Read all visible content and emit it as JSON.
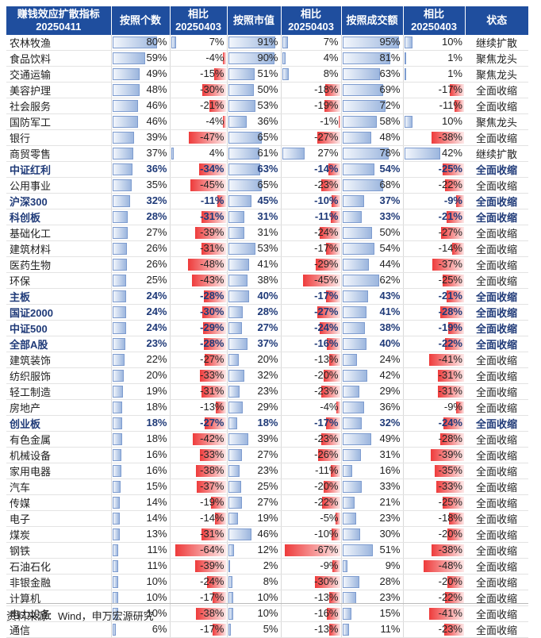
{
  "headers": [
    "赚钱效应扩散指标\n20250411",
    "按照个数",
    "相比\n20250403",
    "按照市值",
    "相比\n20250403",
    "按照成交额",
    "相比\n20250403",
    "状态"
  ],
  "source": "资料来源：Wind，申万宏源研究",
  "colors": {
    "header_bg": "#1f4e9e",
    "positive_bar": "#9cb6de",
    "negative_bar": "#ee3b3b",
    "bold_text": "#1f3a78"
  },
  "chart_data": {
    "type": "table",
    "columns": [
      "按照个数",
      "相比20250403",
      "按照市值",
      "相比20250403",
      "按照成交额",
      "相比20250403",
      "状态"
    ],
    "rows": [
      {
        "name": "农林牧渔",
        "bold": false,
        "count": 80,
        "count_chg": 7,
        "mcap": 91,
        "mcap_chg": 7,
        "amt": 95,
        "amt_chg": 10,
        "status": "继续扩散"
      },
      {
        "name": "食品饮料",
        "bold": false,
        "count": 59,
        "count_chg": -4,
        "mcap": 90,
        "mcap_chg": 4,
        "amt": 81,
        "amt_chg": 1,
        "status": "聚焦龙头"
      },
      {
        "name": "交通运输",
        "bold": false,
        "count": 49,
        "count_chg": -15,
        "mcap": 51,
        "mcap_chg": 8,
        "amt": 63,
        "amt_chg": 1,
        "status": "聚焦龙头"
      },
      {
        "name": "美容护理",
        "bold": false,
        "count": 48,
        "count_chg": -30,
        "mcap": 50,
        "mcap_chg": -18,
        "amt": 69,
        "amt_chg": -17,
        "status": "全面收缩"
      },
      {
        "name": "社会服务",
        "bold": false,
        "count": 46,
        "count_chg": -21,
        "mcap": 53,
        "mcap_chg": -19,
        "amt": 72,
        "amt_chg": -11,
        "status": "全面收缩"
      },
      {
        "name": "国防军工",
        "bold": false,
        "count": 46,
        "count_chg": -4,
        "mcap": 36,
        "mcap_chg": -1,
        "amt": 58,
        "amt_chg": 10,
        "status": "聚焦龙头"
      },
      {
        "name": "银行",
        "bold": false,
        "count": 39,
        "count_chg": -47,
        "mcap": 65,
        "mcap_chg": -27,
        "amt": 48,
        "amt_chg": -38,
        "status": "全面收缩"
      },
      {
        "name": "商贸零售",
        "bold": false,
        "count": 37,
        "count_chg": 4,
        "mcap": 61,
        "mcap_chg": 27,
        "amt": 78,
        "amt_chg": 42,
        "status": "继续扩散"
      },
      {
        "name": "中证红利",
        "bold": true,
        "count": 36,
        "count_chg": -34,
        "mcap": 63,
        "mcap_chg": -14,
        "amt": 54,
        "amt_chg": -25,
        "status": "全面收缩"
      },
      {
        "name": "公用事业",
        "bold": false,
        "count": 35,
        "count_chg": -45,
        "mcap": 65,
        "mcap_chg": -23,
        "amt": 68,
        "amt_chg": -22,
        "status": "全面收缩"
      },
      {
        "name": "沪深300",
        "bold": true,
        "count": 32,
        "count_chg": -11,
        "mcap": 45,
        "mcap_chg": -10,
        "amt": 37,
        "amt_chg": -9,
        "status": "全面收缩"
      },
      {
        "name": "科创板",
        "bold": true,
        "count": 28,
        "count_chg": -31,
        "mcap": 31,
        "mcap_chg": -11,
        "amt": 33,
        "amt_chg": -21,
        "status": "全面收缩"
      },
      {
        "name": "基础化工",
        "bold": false,
        "count": 27,
        "count_chg": -39,
        "mcap": 31,
        "mcap_chg": -24,
        "amt": 50,
        "amt_chg": -27,
        "status": "全面收缩"
      },
      {
        "name": "建筑材料",
        "bold": false,
        "count": 26,
        "count_chg": -31,
        "mcap": 53,
        "mcap_chg": -17,
        "amt": 54,
        "amt_chg": -14,
        "status": "全面收缩"
      },
      {
        "name": "医药生物",
        "bold": false,
        "count": 26,
        "count_chg": -48,
        "mcap": 41,
        "mcap_chg": -29,
        "amt": 44,
        "amt_chg": -37,
        "status": "全面收缩"
      },
      {
        "name": "环保",
        "bold": false,
        "count": 25,
        "count_chg": -43,
        "mcap": 38,
        "mcap_chg": -45,
        "amt": 62,
        "amt_chg": -25,
        "status": "全面收缩"
      },
      {
        "name": "主板",
        "bold": true,
        "count": 24,
        "count_chg": -28,
        "mcap": 40,
        "mcap_chg": -17,
        "amt": 43,
        "amt_chg": -21,
        "status": "全面收缩"
      },
      {
        "name": "国证2000",
        "bold": true,
        "count": 24,
        "count_chg": -30,
        "mcap": 28,
        "mcap_chg": -27,
        "amt": 41,
        "amt_chg": -28,
        "status": "全面收缩"
      },
      {
        "name": "中证500",
        "bold": true,
        "count": 24,
        "count_chg": -29,
        "mcap": 27,
        "mcap_chg": -24,
        "amt": 38,
        "amt_chg": -19,
        "status": "全面收缩"
      },
      {
        "name": "全部A股",
        "bold": true,
        "count": 23,
        "count_chg": -28,
        "mcap": 37,
        "mcap_chg": -16,
        "amt": 40,
        "amt_chg": -22,
        "status": "全面收缩"
      },
      {
        "name": "建筑装饰",
        "bold": false,
        "count": 22,
        "count_chg": -27,
        "mcap": 20,
        "mcap_chg": -13,
        "amt": 24,
        "amt_chg": -41,
        "status": "全面收缩"
      },
      {
        "name": "纺织服饰",
        "bold": false,
        "count": 20,
        "count_chg": -33,
        "mcap": 32,
        "mcap_chg": -20,
        "amt": 42,
        "amt_chg": -31,
        "status": "全面收缩"
      },
      {
        "name": "轻工制造",
        "bold": false,
        "count": 19,
        "count_chg": -31,
        "mcap": 23,
        "mcap_chg": -23,
        "amt": 29,
        "amt_chg": -31,
        "status": "全面收缩"
      },
      {
        "name": "房地产",
        "bold": false,
        "count": 18,
        "count_chg": -13,
        "mcap": 29,
        "mcap_chg": -4,
        "amt": 36,
        "amt_chg": -9,
        "status": "全面收缩"
      },
      {
        "name": "创业板",
        "bold": true,
        "count": 18,
        "count_chg": -27,
        "mcap": 18,
        "mcap_chg": -17,
        "amt": 32,
        "amt_chg": -24,
        "status": "全面收缩"
      },
      {
        "name": "有色金属",
        "bold": false,
        "count": 18,
        "count_chg": -42,
        "mcap": 39,
        "mcap_chg": -23,
        "amt": 49,
        "amt_chg": -28,
        "status": "全面收缩"
      },
      {
        "name": "机械设备",
        "bold": false,
        "count": 16,
        "count_chg": -33,
        "mcap": 27,
        "mcap_chg": -26,
        "amt": 31,
        "amt_chg": -39,
        "status": "全面收缩"
      },
      {
        "name": "家用电器",
        "bold": false,
        "count": 16,
        "count_chg": -38,
        "mcap": 23,
        "mcap_chg": -11,
        "amt": 16,
        "amt_chg": -35,
        "status": "全面收缩"
      },
      {
        "name": "汽车",
        "bold": false,
        "count": 15,
        "count_chg": -37,
        "mcap": 25,
        "mcap_chg": -20,
        "amt": 33,
        "amt_chg": -33,
        "status": "全面收缩"
      },
      {
        "name": "传媒",
        "bold": false,
        "count": 14,
        "count_chg": -19,
        "mcap": 27,
        "mcap_chg": -22,
        "amt": 21,
        "amt_chg": -25,
        "status": "全面收缩"
      },
      {
        "name": "电子",
        "bold": false,
        "count": 14,
        "count_chg": -14,
        "mcap": 19,
        "mcap_chg": -5,
        "amt": 23,
        "amt_chg": -18,
        "status": "全面收缩"
      },
      {
        "name": "煤炭",
        "bold": false,
        "count": 13,
        "count_chg": -31,
        "mcap": 46,
        "mcap_chg": -10,
        "amt": 30,
        "amt_chg": -20,
        "status": "全面收缩"
      },
      {
        "name": "钢铁",
        "bold": false,
        "count": 11,
        "count_chg": -64,
        "mcap": 12,
        "mcap_chg": -67,
        "amt": 51,
        "amt_chg": -38,
        "status": "全面收缩"
      },
      {
        "name": "石油石化",
        "bold": false,
        "count": 11,
        "count_chg": -39,
        "mcap": 2,
        "mcap_chg": -9,
        "amt": 9,
        "amt_chg": -48,
        "status": "全面收缩"
      },
      {
        "name": "非银金融",
        "bold": false,
        "count": 10,
        "count_chg": -24,
        "mcap": 8,
        "mcap_chg": -30,
        "amt": 28,
        "amt_chg": -20,
        "status": "全面收缩"
      },
      {
        "name": "计算机",
        "bold": false,
        "count": 10,
        "count_chg": -17,
        "mcap": 10,
        "mcap_chg": -13,
        "amt": 23,
        "amt_chg": -22,
        "status": "全面收缩"
      },
      {
        "name": "电力设备",
        "bold": false,
        "count": 10,
        "count_chg": -38,
        "mcap": 10,
        "mcap_chg": -16,
        "amt": 15,
        "amt_chg": -41,
        "status": "全面收缩"
      },
      {
        "name": "通信",
        "bold": false,
        "count": 6,
        "count_chg": -17,
        "mcap": 5,
        "mcap_chg": -13,
        "amt": 11,
        "amt_chg": -23,
        "status": "全面收缩"
      }
    ]
  }
}
